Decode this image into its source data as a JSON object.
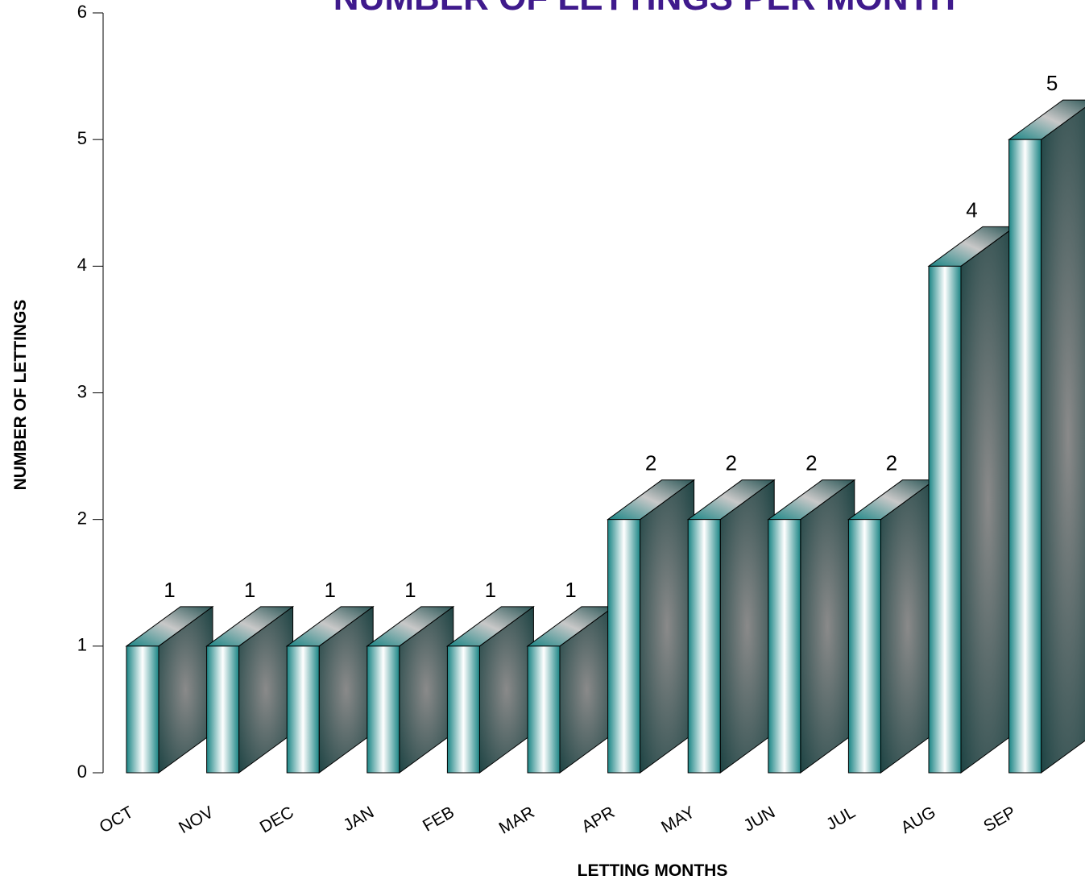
{
  "chart_data": {
    "type": "bar3d",
    "title": "NUMBER OF LETTINGS PER MONTH",
    "x_label": "LETTING MONTHS",
    "y_label": "NUMBER OF LETTINGS",
    "categories": [
      "OCT",
      "NOV",
      "DEC",
      "JAN",
      "FEB",
      "MAR",
      "APR",
      "MAY",
      "JUN",
      "JUL",
      "AUG",
      "SEP"
    ],
    "values": [
      1,
      1,
      1,
      1,
      1,
      1,
      2,
      2,
      2,
      2,
      4,
      5
    ],
    "color": "#1b8585",
    "ylim": [
      0,
      6
    ],
    "yticks": [
      0,
      1,
      2,
      3,
      4,
      5,
      6
    ]
  }
}
